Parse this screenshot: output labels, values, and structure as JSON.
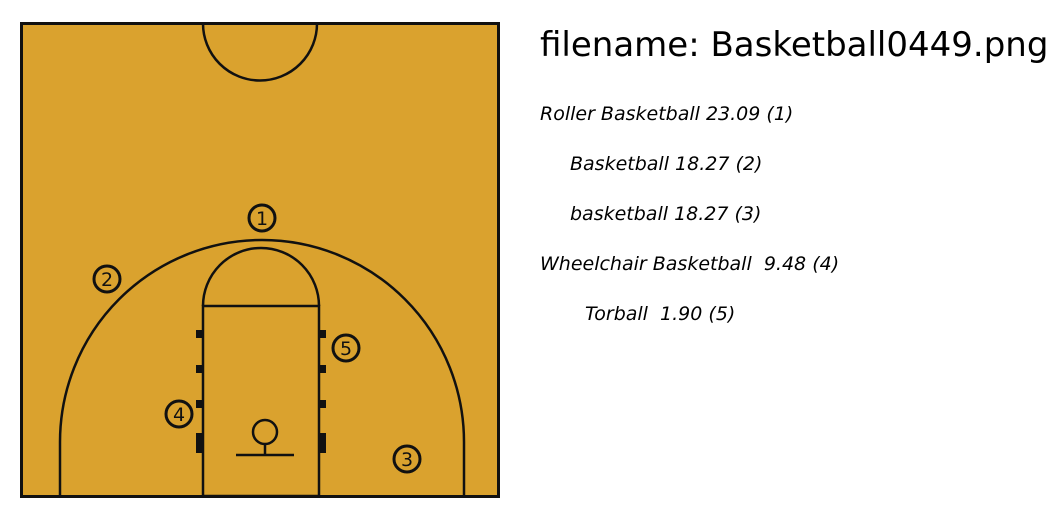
{
  "title": "filename: Basketball0449.png",
  "predictions": [
    {
      "label": "Roller Basketball",
      "score": "23.09",
      "rank": "(1)"
    },
    {
      "label": "Basketball",
      "score": "18.27",
      "rank": "(2)"
    },
    {
      "label": "basketball",
      "score": "18.27",
      "rank": "(3)"
    },
    {
      "label": "Wheelchair Basketball",
      "score": " 9.48",
      "rank": "(4)"
    },
    {
      "label": "Torball",
      "score": " 1.90",
      "rank": "(5)"
    }
  ],
  "court": {
    "floor_color": "#DAA22E",
    "line_color": "#111111",
    "players": [
      "1",
      "2",
      "3",
      "4",
      "5"
    ]
  }
}
